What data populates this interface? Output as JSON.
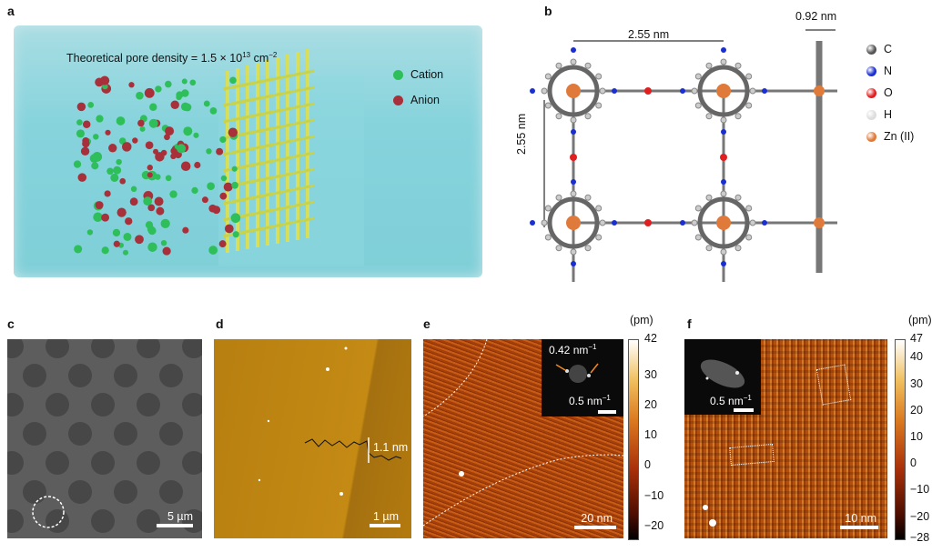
{
  "panels": {
    "a": {
      "label": "a",
      "annotation": "Theoretical pore density = 1.5 × 10",
      "annotation_exp": "13",
      "annotation_unit": " cm",
      "annotation_unit_exp": "−2",
      "legend": [
        {
          "label": "Cation",
          "color": "#2fbf5a"
        },
        {
          "label": "Anion",
          "color": "#a8303a"
        }
      ]
    },
    "b": {
      "label": "b",
      "width_dim": "2.55 nm",
      "height_dim": "2.55 nm",
      "thickness_dim": "0.92 nm",
      "legend": [
        {
          "label": "C",
          "color": "#555555"
        },
        {
          "label": "N",
          "color": "#1a2fd0"
        },
        {
          "label": "O",
          "color": "#e02020"
        },
        {
          "label": "H",
          "color": "#dddddd"
        },
        {
          "label": "Zn (II)",
          "color": "#e07a3a"
        }
      ]
    },
    "c": {
      "label": "c",
      "scale": "5 µm"
    },
    "d": {
      "label": "d",
      "scale": "1 µm",
      "step": "1.1 nm"
    },
    "e": {
      "label": "e",
      "scale": "20 nm",
      "fft_peak": "0.42 nm",
      "fft_peak_exp": "−1",
      "fft_scale": "0.5 nm",
      "fft_scale_exp": "−1",
      "unit": "(pm)",
      "ticks": [
        "42",
        "30",
        "20",
        "10",
        "0",
        "−10",
        "−20"
      ]
    },
    "f": {
      "label": "f",
      "scale": "10 nm",
      "fft_scale": "0.5 nm",
      "fft_scale_exp": "−1",
      "unit": "(pm)",
      "ticks": [
        "47",
        "40",
        "30",
        "20",
        "10",
        "0",
        "−10",
        "−20",
        "−28"
      ]
    }
  }
}
